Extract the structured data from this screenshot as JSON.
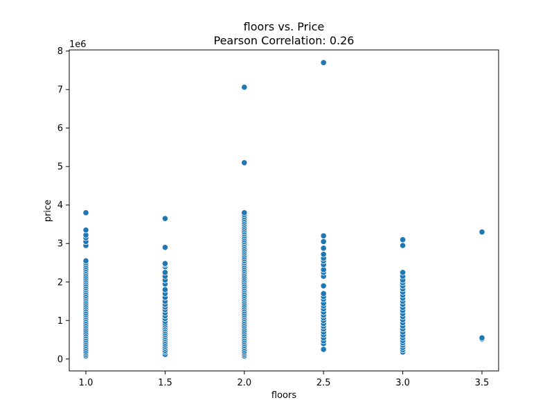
{
  "chart_data": {
    "type": "scatter",
    "title": "floors vs. Price",
    "subtitle": "Pearson Correlation: 0.26",
    "xlabel": "floors",
    "ylabel": "price",
    "y_offset_label": "1e6",
    "xlim": [
      0.895,
      3.605
    ],
    "ylim": [
      -0.31,
      8.03
    ],
    "x_ticks": [
      1.0,
      1.5,
      2.0,
      2.5,
      3.0,
      3.5
    ],
    "x_tick_labels": [
      "1.0",
      "1.5",
      "2.0",
      "2.5",
      "3.0",
      "3.5"
    ],
    "y_ticks": [
      0,
      1,
      2,
      3,
      4,
      5,
      6,
      7,
      8
    ],
    "y_tick_labels": [
      "0",
      "1",
      "2",
      "3",
      "4",
      "5",
      "6",
      "7",
      "8"
    ],
    "grid": false,
    "color": "#1f77b4",
    "series": [
      {
        "points": [
          [
            1.0,
            0.08
          ],
          [
            1.0,
            0.12
          ],
          [
            1.0,
            0.16
          ],
          [
            1.0,
            0.2
          ],
          [
            1.0,
            0.25
          ],
          [
            1.0,
            0.3
          ],
          [
            1.0,
            0.35
          ],
          [
            1.0,
            0.4
          ],
          [
            1.0,
            0.45
          ],
          [
            1.0,
            0.5
          ],
          [
            1.0,
            0.55
          ],
          [
            1.0,
            0.6
          ],
          [
            1.0,
            0.65
          ],
          [
            1.0,
            0.7
          ],
          [
            1.0,
            0.75
          ],
          [
            1.0,
            0.8
          ],
          [
            1.0,
            0.85
          ],
          [
            1.0,
            0.9
          ],
          [
            1.0,
            0.95
          ],
          [
            1.0,
            1.0
          ],
          [
            1.0,
            1.05
          ],
          [
            1.0,
            1.1
          ],
          [
            1.0,
            1.15
          ],
          [
            1.0,
            1.2
          ],
          [
            1.0,
            1.25
          ],
          [
            1.0,
            1.3
          ],
          [
            1.0,
            1.35
          ],
          [
            1.0,
            1.4
          ],
          [
            1.0,
            1.45
          ],
          [
            1.0,
            1.5
          ],
          [
            1.0,
            1.55
          ],
          [
            1.0,
            1.6
          ],
          [
            1.0,
            1.65
          ],
          [
            1.0,
            1.7
          ],
          [
            1.0,
            1.75
          ],
          [
            1.0,
            1.8
          ],
          [
            1.0,
            1.85
          ],
          [
            1.0,
            1.9
          ],
          [
            1.0,
            1.95
          ],
          [
            1.0,
            2.0
          ],
          [
            1.0,
            2.05
          ],
          [
            1.0,
            2.1
          ],
          [
            1.0,
            2.15
          ],
          [
            1.0,
            2.2
          ],
          [
            1.0,
            2.25
          ],
          [
            1.0,
            2.3
          ],
          [
            1.0,
            2.35
          ],
          [
            1.0,
            2.4
          ],
          [
            1.0,
            2.45
          ],
          [
            1.0,
            2.5
          ],
          [
            1.0,
            2.55
          ],
          [
            1.0,
            2.95
          ],
          [
            1.0,
            3.05
          ],
          [
            1.0,
            3.15
          ],
          [
            1.0,
            3.22
          ],
          [
            1.0,
            3.35
          ],
          [
            1.0,
            3.8
          ],
          [
            1.5,
            0.12
          ],
          [
            1.5,
            0.18
          ],
          [
            1.5,
            0.22
          ],
          [
            1.5,
            0.28
          ],
          [
            1.5,
            0.33
          ],
          [
            1.5,
            0.38
          ],
          [
            1.5,
            0.43
          ],
          [
            1.5,
            0.48
          ],
          [
            1.5,
            0.53
          ],
          [
            1.5,
            0.58
          ],
          [
            1.5,
            0.63
          ],
          [
            1.5,
            0.68
          ],
          [
            1.5,
            0.73
          ],
          [
            1.5,
            0.78
          ],
          [
            1.5,
            0.83
          ],
          [
            1.5,
            0.88
          ],
          [
            1.5,
            0.93
          ],
          [
            1.5,
            0.98
          ],
          [
            1.5,
            1.05
          ],
          [
            1.5,
            1.12
          ],
          [
            1.5,
            1.2
          ],
          [
            1.5,
            1.28
          ],
          [
            1.5,
            1.35
          ],
          [
            1.5,
            1.42
          ],
          [
            1.5,
            1.5
          ],
          [
            1.5,
            1.6
          ],
          [
            1.5,
            1.7
          ],
          [
            1.5,
            1.8
          ],
          [
            1.5,
            1.95
          ],
          [
            1.5,
            2.05
          ],
          [
            1.5,
            2.15
          ],
          [
            1.5,
            2.25
          ],
          [
            1.5,
            2.4
          ],
          [
            1.5,
            2.45
          ],
          [
            1.5,
            2.48
          ],
          [
            1.5,
            2.9
          ],
          [
            1.5,
            3.65
          ],
          [
            2.0,
            0.08
          ],
          [
            2.0,
            0.12
          ],
          [
            2.0,
            0.16
          ],
          [
            2.0,
            0.2
          ],
          [
            2.0,
            0.25
          ],
          [
            2.0,
            0.3
          ],
          [
            2.0,
            0.35
          ],
          [
            2.0,
            0.4
          ],
          [
            2.0,
            0.45
          ],
          [
            2.0,
            0.5
          ],
          [
            2.0,
            0.55
          ],
          [
            2.0,
            0.6
          ],
          [
            2.0,
            0.65
          ],
          [
            2.0,
            0.7
          ],
          [
            2.0,
            0.75
          ],
          [
            2.0,
            0.8
          ],
          [
            2.0,
            0.85
          ],
          [
            2.0,
            0.9
          ],
          [
            2.0,
            0.95
          ],
          [
            2.0,
            1.0
          ],
          [
            2.0,
            1.05
          ],
          [
            2.0,
            1.1
          ],
          [
            2.0,
            1.15
          ],
          [
            2.0,
            1.2
          ],
          [
            2.0,
            1.25
          ],
          [
            2.0,
            1.3
          ],
          [
            2.0,
            1.35
          ],
          [
            2.0,
            1.4
          ],
          [
            2.0,
            1.45
          ],
          [
            2.0,
            1.5
          ],
          [
            2.0,
            1.55
          ],
          [
            2.0,
            1.6
          ],
          [
            2.0,
            1.65
          ],
          [
            2.0,
            1.7
          ],
          [
            2.0,
            1.75
          ],
          [
            2.0,
            1.8
          ],
          [
            2.0,
            1.85
          ],
          [
            2.0,
            1.9
          ],
          [
            2.0,
            1.95
          ],
          [
            2.0,
            2.0
          ],
          [
            2.0,
            2.05
          ],
          [
            2.0,
            2.1
          ],
          [
            2.0,
            2.15
          ],
          [
            2.0,
            2.2
          ],
          [
            2.0,
            2.25
          ],
          [
            2.0,
            2.3
          ],
          [
            2.0,
            2.35
          ],
          [
            2.0,
            2.4
          ],
          [
            2.0,
            2.45
          ],
          [
            2.0,
            2.5
          ],
          [
            2.0,
            2.55
          ],
          [
            2.0,
            2.6
          ],
          [
            2.0,
            2.65
          ],
          [
            2.0,
            2.7
          ],
          [
            2.0,
            2.75
          ],
          [
            2.0,
            2.8
          ],
          [
            2.0,
            2.85
          ],
          [
            2.0,
            2.9
          ],
          [
            2.0,
            2.95
          ],
          [
            2.0,
            3.0
          ],
          [
            2.0,
            3.05
          ],
          [
            2.0,
            3.1
          ],
          [
            2.0,
            3.15
          ],
          [
            2.0,
            3.2
          ],
          [
            2.0,
            3.25
          ],
          [
            2.0,
            3.3
          ],
          [
            2.0,
            3.35
          ],
          [
            2.0,
            3.4
          ],
          [
            2.0,
            3.45
          ],
          [
            2.0,
            3.5
          ],
          [
            2.0,
            3.55
          ],
          [
            2.0,
            3.6
          ],
          [
            2.0,
            3.65
          ],
          [
            2.0,
            3.7
          ],
          [
            2.0,
            3.75
          ],
          [
            2.0,
            3.8
          ],
          [
            2.0,
            5.1
          ],
          [
            2.0,
            7.06
          ],
          [
            2.5,
            0.25
          ],
          [
            2.5,
            0.4
          ],
          [
            2.5,
            0.47
          ],
          [
            2.5,
            0.55
          ],
          [
            2.5,
            0.63
          ],
          [
            2.5,
            0.7
          ],
          [
            2.5,
            0.78
          ],
          [
            2.5,
            0.85
          ],
          [
            2.5,
            0.92
          ],
          [
            2.5,
            1.0
          ],
          [
            2.5,
            1.07
          ],
          [
            2.5,
            1.14
          ],
          [
            2.5,
            1.22
          ],
          [
            2.5,
            1.3
          ],
          [
            2.5,
            1.38
          ],
          [
            2.5,
            1.45
          ],
          [
            2.5,
            1.55
          ],
          [
            2.5,
            1.62
          ],
          [
            2.5,
            1.7
          ],
          [
            2.5,
            1.9
          ],
          [
            2.5,
            2.15
          ],
          [
            2.5,
            2.25
          ],
          [
            2.5,
            2.32
          ],
          [
            2.5,
            2.45
          ],
          [
            2.5,
            2.55
          ],
          [
            2.5,
            2.62
          ],
          [
            2.5,
            2.72
          ],
          [
            2.5,
            2.88
          ],
          [
            2.5,
            3.05
          ],
          [
            2.5,
            3.2
          ],
          [
            2.5,
            7.7
          ],
          [
            3.0,
            0.18
          ],
          [
            3.0,
            0.24
          ],
          [
            3.0,
            0.3
          ],
          [
            3.0,
            0.36
          ],
          [
            3.0,
            0.42
          ],
          [
            3.0,
            0.48
          ],
          [
            3.0,
            0.55
          ],
          [
            3.0,
            0.62
          ],
          [
            3.0,
            0.7
          ],
          [
            3.0,
            0.78
          ],
          [
            3.0,
            0.86
          ],
          [
            3.0,
            0.94
          ],
          [
            3.0,
            1.02
          ],
          [
            3.0,
            1.1
          ],
          [
            3.0,
            1.18
          ],
          [
            3.0,
            1.26
          ],
          [
            3.0,
            1.34
          ],
          [
            3.0,
            1.42
          ],
          [
            3.0,
            1.5
          ],
          [
            3.0,
            1.58
          ],
          [
            3.0,
            1.66
          ],
          [
            3.0,
            1.74
          ],
          [
            3.0,
            1.82
          ],
          [
            3.0,
            1.9
          ],
          [
            3.0,
            1.98
          ],
          [
            3.0,
            2.05
          ],
          [
            3.0,
            2.15
          ],
          [
            3.0,
            2.25
          ],
          [
            3.0,
            2.95
          ],
          [
            3.0,
            3.1
          ],
          [
            3.5,
            0.52
          ],
          [
            3.5,
            0.55
          ],
          [
            3.5,
            3.3
          ]
        ]
      }
    ]
  }
}
